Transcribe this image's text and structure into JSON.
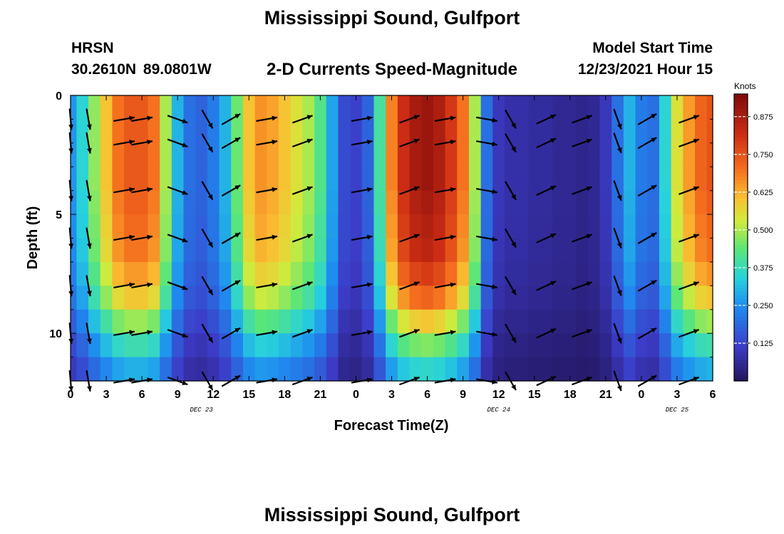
{
  "title": "Mississippi Sound, Gulfport",
  "bottom_title": "Mississippi Sound, Gulfport",
  "station": {
    "id": "HRSN",
    "coords": "30.2610N  89.0801W"
  },
  "subtitle": "2-D Currents Speed-Magnitude",
  "model": {
    "label": "Model Start Time",
    "time": "12/23/2021 Hour 15"
  },
  "chart_data": {
    "type": "heatmap",
    "title": "2-D Currents Speed-Magnitude",
    "xlabel": "Forecast Time(Z)",
    "ylabel": "Depth (ft)",
    "x_range_hours": [
      0,
      54
    ],
    "ylim": [
      0,
      12
    ],
    "y_inverted": true,
    "x_tick_labels": [
      "0",
      "3",
      "6",
      "9",
      "12",
      "15",
      "18",
      "21",
      "0",
      "3",
      "6",
      "9",
      "12",
      "15",
      "18",
      "21",
      "0",
      "3",
      "6"
    ],
    "y_tick_labels": [
      "0",
      "5",
      "10"
    ],
    "y_tick_values": [
      0,
      5,
      10
    ],
    "date_labels": [
      {
        "text": "DEC 23",
        "x": 11
      },
      {
        "text": "DEC 24",
        "x": 36
      },
      {
        "text": "DEC 25",
        "x": 51
      }
    ],
    "colorbar": {
      "label": "Knots",
      "range": [
        0,
        0.95
      ],
      "ticks": [
        "0.875",
        "0.750",
        "0.625",
        "0.500",
        "0.375",
        "0.250",
        "0.125"
      ],
      "tick_values": [
        0.875,
        0.75,
        0.625,
        0.5,
        0.375,
        0.25,
        0.125
      ]
    },
    "speed_profile": {
      "hours": [
        0,
        1,
        2,
        3,
        4,
        5,
        6,
        7,
        8,
        9,
        10,
        11,
        12,
        13,
        14,
        15,
        16,
        17,
        18,
        19,
        20,
        21,
        22,
        23,
        24,
        25,
        26,
        27,
        28,
        29,
        30,
        31,
        32,
        33,
        34,
        35,
        36,
        37,
        38,
        39,
        40,
        41,
        42,
        43,
        44,
        45,
        46,
        47,
        48,
        49,
        50,
        51,
        52,
        53,
        54
      ],
      "values": [
        0.26,
        0.35,
        0.48,
        0.6,
        0.7,
        0.74,
        0.74,
        0.7,
        0.5,
        0.3,
        0.2,
        0.18,
        0.22,
        0.3,
        0.45,
        0.6,
        0.66,
        0.64,
        0.6,
        0.55,
        0.5,
        0.42,
        0.28,
        0.14,
        0.12,
        0.18,
        0.4,
        0.68,
        0.82,
        0.88,
        0.9,
        0.87,
        0.8,
        0.7,
        0.5,
        0.2,
        0.1,
        0.08,
        0.08,
        0.07,
        0.07,
        0.06,
        0.06,
        0.05,
        0.06,
        0.1,
        0.2,
        0.3,
        0.22,
        0.2,
        0.35,
        0.55,
        0.65,
        0.72,
        0.75
      ]
    },
    "depth_factors": [
      1.0,
      1.0,
      1.0,
      1.0,
      0.98,
      0.96,
      0.94,
      0.88,
      0.8,
      0.66,
      0.52,
      0.4
    ],
    "arrow_depths": [
      1,
      2,
      4,
      6,
      8,
      10,
      12
    ],
    "arrow_hours": [
      0,
      1.5,
      4.5,
      6,
      9,
      11.5,
      13.5,
      16.5,
      19.5,
      24.5,
      28.5,
      31.5,
      35,
      37,
      40,
      43,
      46,
      48.5,
      52
    ],
    "arrow_angles_deg": [
      85,
      80,
      -10,
      -10,
      20,
      60,
      -30,
      -10,
      -20,
      -10,
      -20,
      -10,
      10,
      60,
      -25,
      -20,
      70,
      -30,
      -20
    ]
  }
}
